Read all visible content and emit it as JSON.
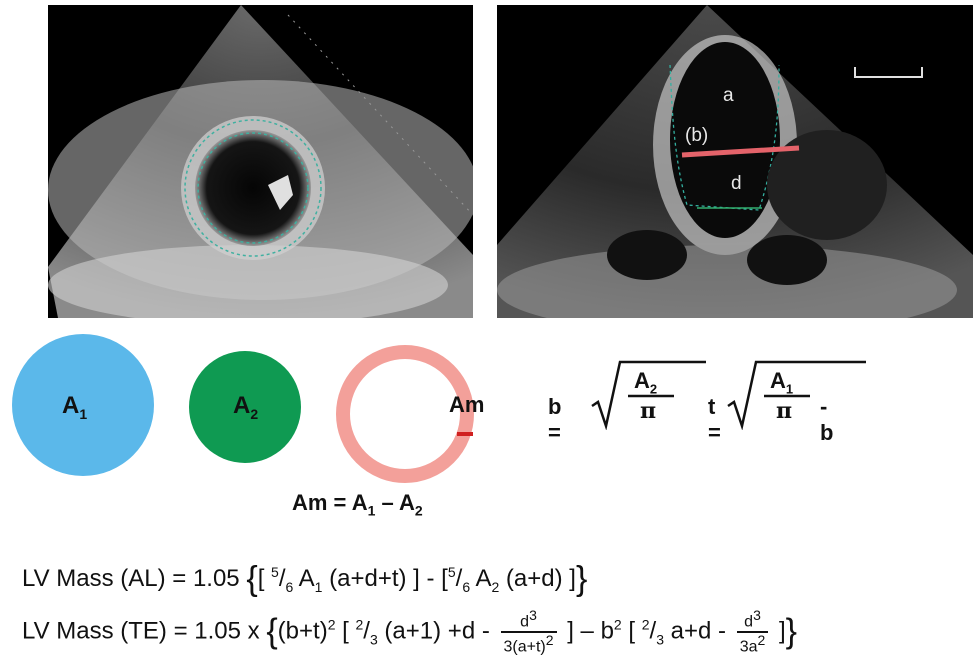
{
  "echo_right_labels": {
    "a": "a",
    "b": "(b)",
    "d": "d"
  },
  "shapes": {
    "a1": {
      "letter": "A",
      "sub": "1",
      "color": "#5bb8ea"
    },
    "a2": {
      "letter": "A",
      "sub": "2",
      "color": "#0f9a52"
    },
    "am": {
      "label": "Am",
      "color": "#f3a09a"
    }
  },
  "formula_b": {
    "lhs": "b =",
    "num_letter": "A",
    "num_sub": "2",
    "den": "π"
  },
  "formula_t": {
    "lhs": "t =",
    "num_letter": "A",
    "num_sub": "1",
    "den": "π",
    "tail": "- b"
  },
  "am_equation": {
    "lhs": "Am = A",
    "s1": "1",
    "mid": " – A",
    "s2": "2"
  },
  "lv_al": {
    "prefix": "LV Mass (AL) = 1.05 ",
    "p1": "[ ",
    "f1": "5",
    "f1d": "6",
    "p2": " A",
    "s1": "1",
    "p3": " (a+d+t) ] - [",
    "f2": "5",
    "f2d": "6",
    "p4": " A",
    "s2": "2",
    "p5": " (a+d) ]"
  },
  "lv_te": {
    "prefix": "LV Mass (TE) = 1.05 x ",
    "p1": "(b+t)",
    "e1": "2",
    "p2": " [ ",
    "f1": "2",
    "f1d": "3",
    "p3": " (a+1) +d - ",
    "fr1_num": "d",
    "fr1_num_exp": "3",
    "fr1_den": "3(a+t)",
    "fr1_den_exp": "2",
    "p4": " ] – b",
    "e2": "2",
    "p5": " [ ",
    "f2": "2",
    "f2d": "3",
    "p6": " a+d - ",
    "fr2_num": "d",
    "fr2_num_exp": "3",
    "fr2_den": "3a",
    "fr2_den_exp": "2",
    "p7": " ]"
  }
}
